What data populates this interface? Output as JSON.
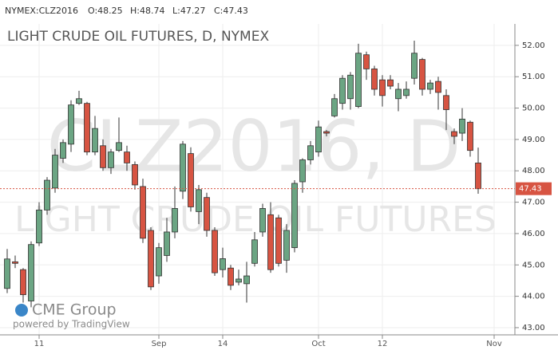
{
  "header": {
    "symbol": "NYMEX:CLZ2016",
    "open": "O:48.25",
    "high": "H:48.74",
    "low": "L:47.27",
    "close": "C:47.43"
  },
  "watermark": {
    "symbol": "CLZ2016, D",
    "name": "LIGHT CRUDE OIL FUTURES"
  },
  "logo": {
    "brand": "CME Group",
    "powered": "powered by TradingView"
  },
  "chart_data": {
    "type": "candlestick",
    "title": "LIGHT CRUDE OIL FUTURES, D, NYMEX",
    "categories": [
      null,
      null,
      null,
      null,
      "11",
      null,
      null,
      null,
      null,
      null,
      null,
      null,
      null,
      null,
      null,
      null,
      null,
      null,
      null,
      "Sep",
      null,
      null,
      null,
      null,
      null,
      null,
      null,
      "14",
      null,
      null,
      null,
      null,
      null,
      null,
      null,
      null,
      null,
      null,
      null,
      "Oct",
      null,
      null,
      null,
      null,
      null,
      null,
      null,
      "12",
      null,
      null,
      null,
      null,
      null,
      null,
      null,
      null,
      null,
      null,
      null,
      null,
      null,
      "Nov",
      null,
      null
    ],
    "series": [
      {
        "name": "open",
        "values": [
          44.25,
          45.1,
          44.85,
          43.85,
          45.7,
          46.75,
          47.45,
          48.4,
          48.85,
          50.15,
          50.15,
          48.6,
          48.8,
          48.1,
          48.65,
          48.6,
          48.2,
          47.5,
          46.1,
          44.65,
          45.3,
          46.05,
          47.35,
          48.55,
          46.7,
          47.15,
          46.1,
          44.85,
          44.9,
          44.45,
          44.4,
          45.05,
          46.05,
          46.6,
          46.5,
          45.15,
          45.55,
          47.65,
          48.35,
          48.6,
          49.25,
          49.75,
          50.15,
          50.3,
          50.05,
          51.7,
          51.25,
          50.9,
          50.9,
          50.3,
          50.4,
          50.95,
          51.55,
          50.6,
          50.85,
          50.4,
          49.25,
          49.2,
          49.55,
          48.25,
          null,
          null,
          null,
          null
        ]
      },
      {
        "name": "high",
        "values": [
          45.51,
          45.3,
          44.9,
          45.75,
          47.0,
          47.8,
          48.7,
          49.0,
          50.25,
          50.55,
          50.2,
          49.75,
          49.0,
          48.7,
          49.7,
          48.8,
          48.3,
          47.75,
          46.2,
          45.7,
          46.5,
          47.5,
          48.95,
          48.75,
          47.55,
          47.3,
          46.2,
          45.55,
          45.0,
          44.85,
          45.1,
          46.05,
          46.95,
          47.0,
          46.6,
          46.3,
          47.7,
          48.4,
          48.95,
          49.6,
          49.3,
          50.45,
          51.05,
          51.15,
          52.05,
          51.8,
          51.35,
          51.05,
          51.05,
          50.8,
          50.85,
          52.15,
          51.6,
          50.9,
          51.0,
          50.6,
          49.35,
          50.0,
          49.6,
          48.74,
          null,
          null,
          null,
          null
        ]
      },
      {
        "name": "low",
        "values": [
          44.1,
          44.9,
          43.8,
          43.65,
          45.6,
          46.6,
          47.3,
          48.25,
          48.6,
          50.1,
          48.5,
          48.5,
          48.0,
          47.9,
          48.6,
          48.0,
          47.4,
          45.7,
          44.2,
          44.4,
          45.1,
          45.85,
          47.1,
          46.7,
          46.3,
          45.9,
          44.65,
          44.6,
          44.2,
          44.35,
          43.8,
          44.95,
          45.9,
          44.75,
          44.95,
          44.75,
          45.4,
          47.3,
          48.2,
          48.45,
          49.1,
          49.7,
          49.95,
          49.95,
          50.0,
          50.9,
          50.4,
          50.05,
          50.6,
          49.9,
          50.3,
          50.75,
          50.4,
          50.45,
          49.95,
          49.3,
          48.85,
          48.95,
          48.45,
          47.27,
          null,
          null,
          null,
          null
        ]
      },
      {
        "name": "close",
        "values": [
          45.19,
          45.05,
          44.05,
          45.65,
          46.75,
          47.7,
          48.5,
          48.9,
          50.1,
          50.3,
          48.6,
          49.35,
          48.1,
          48.6,
          48.9,
          48.25,
          47.55,
          45.85,
          44.3,
          45.55,
          46.05,
          46.8,
          48.85,
          46.85,
          47.4,
          46.1,
          44.75,
          45.2,
          44.35,
          44.55,
          44.65,
          45.8,
          46.8,
          44.85,
          45.05,
          46.1,
          47.6,
          48.35,
          48.8,
          49.4,
          49.2,
          50.3,
          50.95,
          51.05,
          51.75,
          51.25,
          50.6,
          50.4,
          50.7,
          50.6,
          50.6,
          51.75,
          50.6,
          50.8,
          50.5,
          49.95,
          49.1,
          49.65,
          48.65,
          47.43,
          null,
          null,
          null,
          null
        ]
      }
    ],
    "up_color": "#6ba583",
    "down_color": "#d75442",
    "last_price": 47.43,
    "ylim": [
      42.77,
      52.48
    ],
    "yticks": [
      {
        "value": 43,
        "label": "43.00"
      },
      {
        "value": 44,
        "label": "44.00"
      },
      {
        "value": 45,
        "label": "45.00"
      },
      {
        "value": 46,
        "label": "46.00"
      },
      {
        "value": 47,
        "label": "47.00"
      },
      {
        "value": 48,
        "label": "48.00"
      },
      {
        "value": 49,
        "label": "49.00"
      },
      {
        "value": 50,
        "label": "50.00"
      },
      {
        "value": 51,
        "label": "51.00"
      },
      {
        "value": 52,
        "label": "52.00"
      }
    ],
    "grid": true
  }
}
